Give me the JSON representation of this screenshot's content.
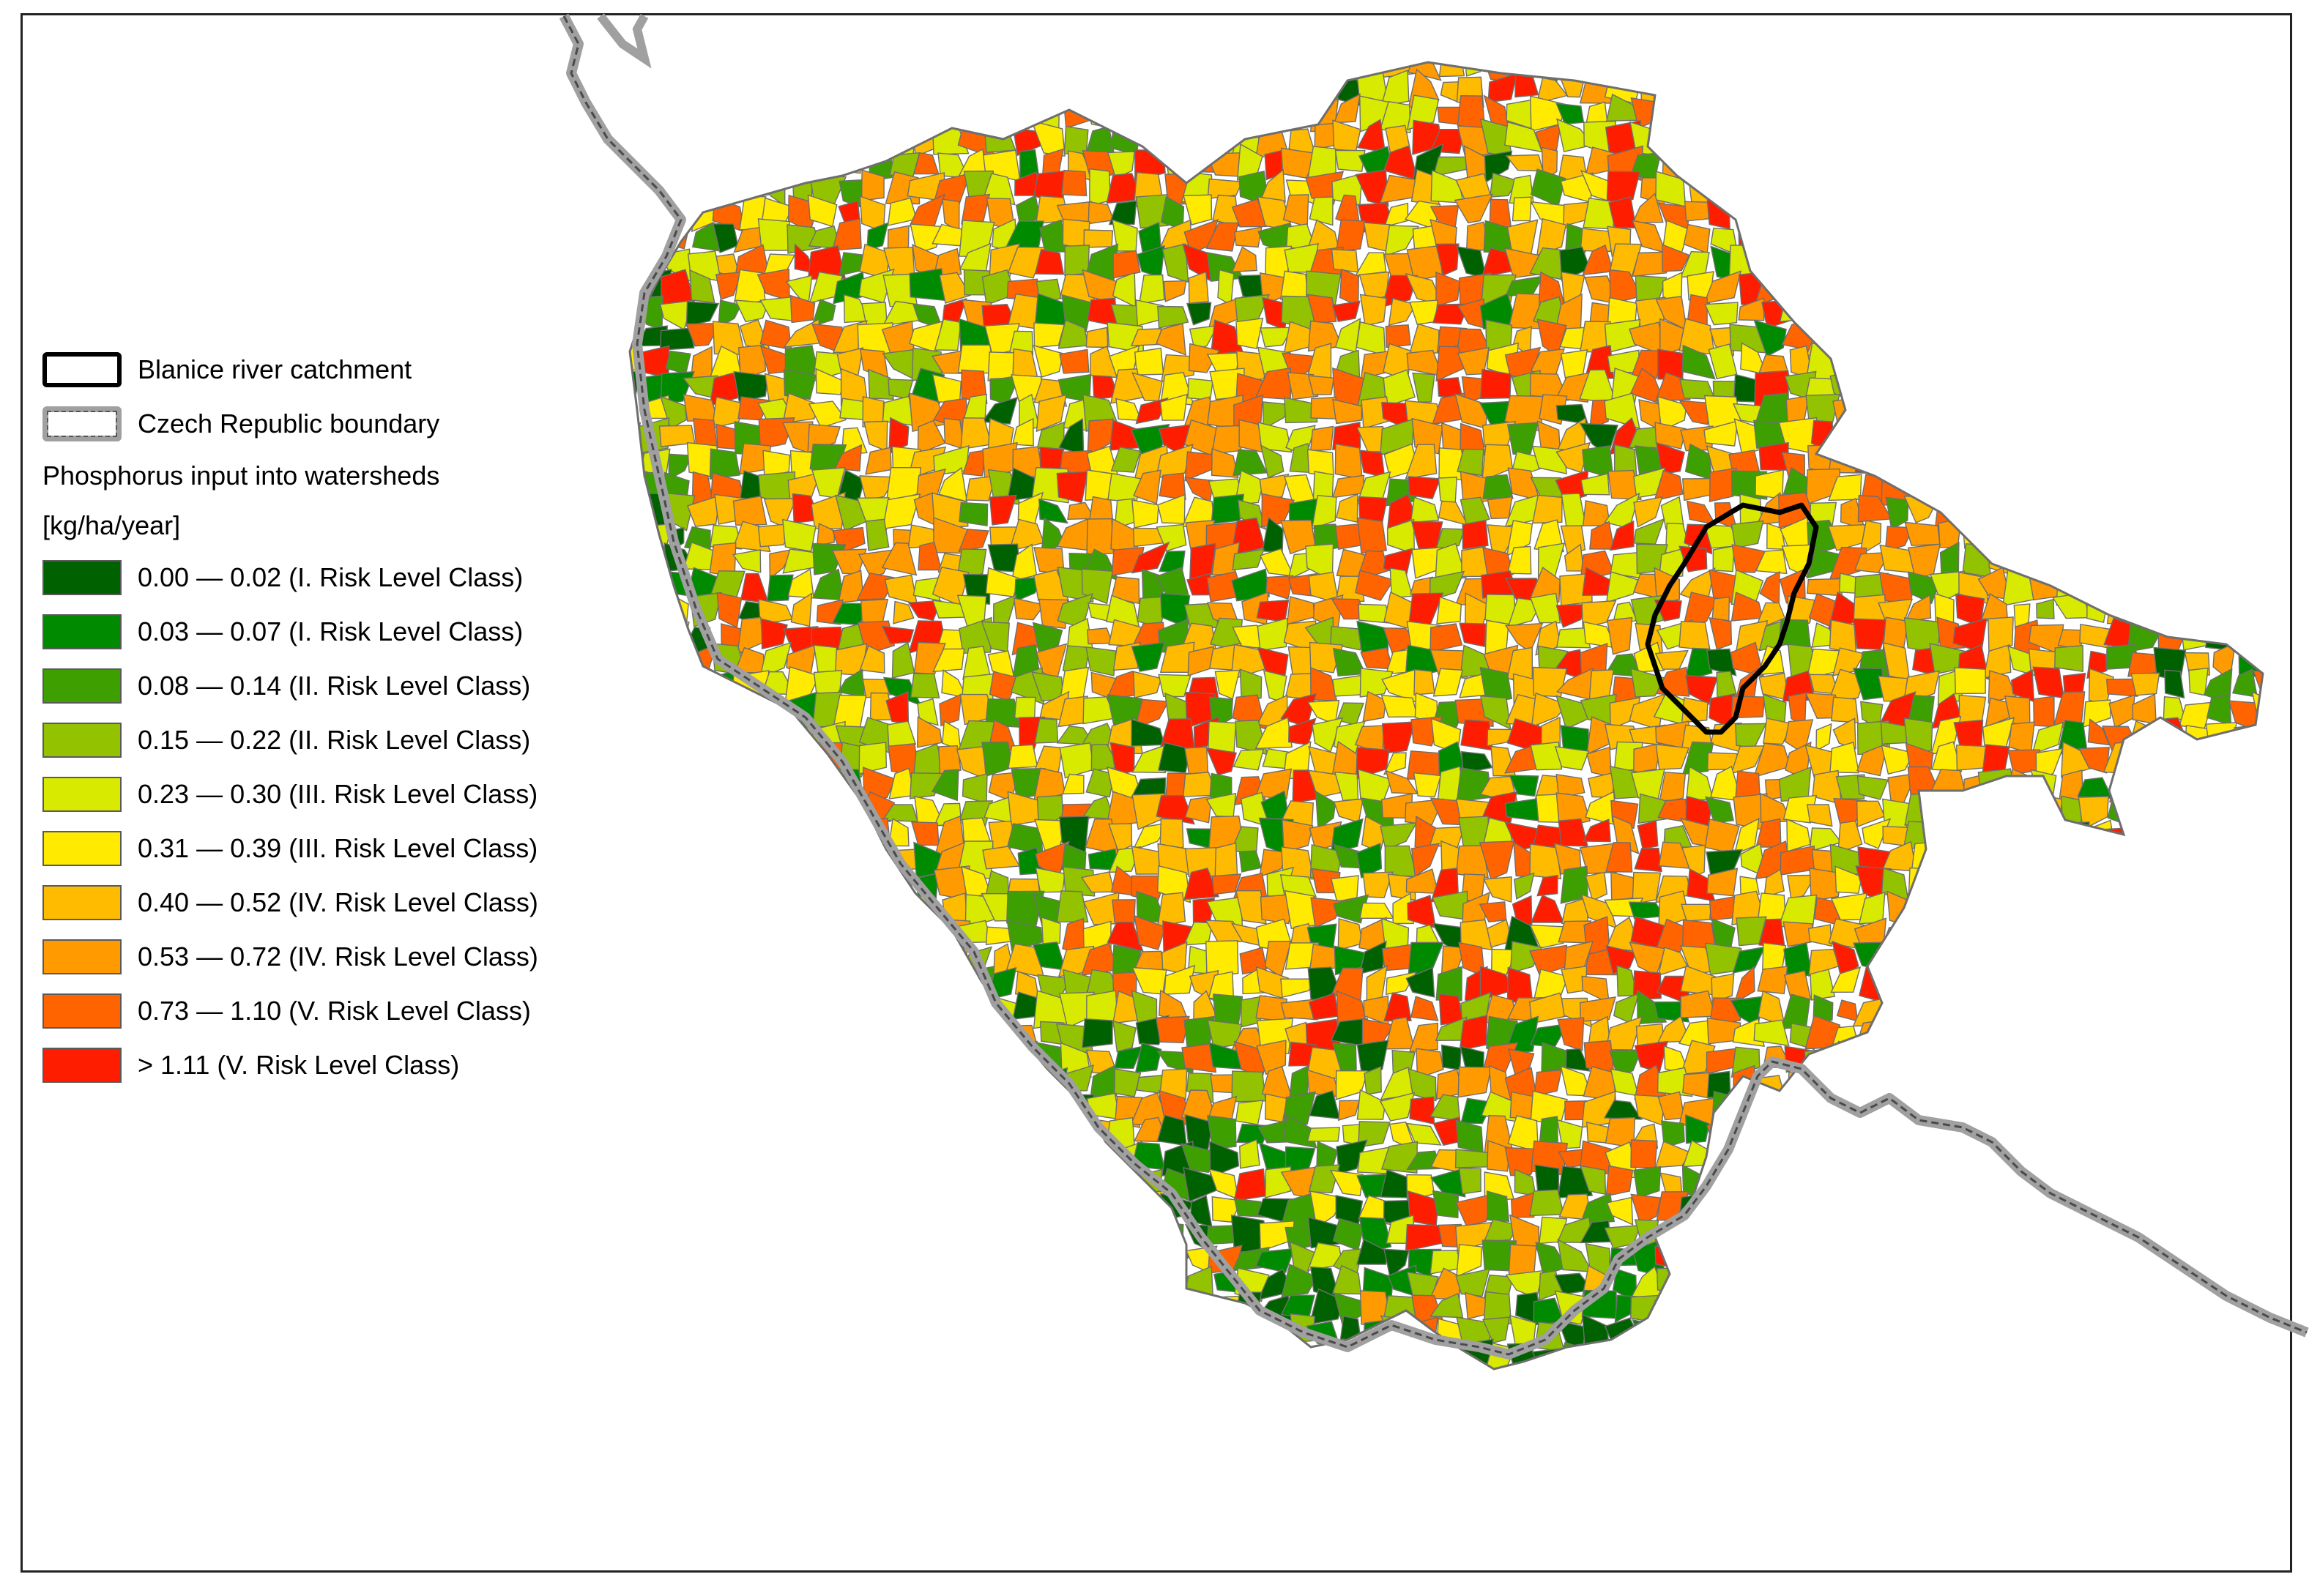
{
  "legend": {
    "boundary_items": [
      {
        "key": "catchment",
        "label": "Blanice river catchment"
      },
      {
        "key": "country",
        "label": "Czech Republic boundary"
      }
    ],
    "heading": "Phosphorus input into watersheds",
    "unit": "[kg/ha/year]",
    "classes": [
      {
        "label": "0.00 — 0.02 (I. Risk Level Class)",
        "color": "#006100"
      },
      {
        "label": "0.03 — 0.07 (I. Risk Level Class)",
        "color": "#008a00"
      },
      {
        "label": "0.08 — 0.14 (II. Risk Level Class)",
        "color": "#3da000"
      },
      {
        "label": "0.15 — 0.22 (II. Risk Level Class)",
        "color": "#93c200"
      },
      {
        "label": "0.23 — 0.30 (III. Risk Level Class)",
        "color": "#d8ea00"
      },
      {
        "label": "0.31 — 0.39 (III. Risk Level Class)",
        "color": "#ffea00"
      },
      {
        "label": "0.40 — 0.52 (IV. Risk Level Class)",
        "color": "#ffbb00"
      },
      {
        "label": "0.53 — 0.72 (IV. Risk Level Class)",
        "color": "#ff9a00"
      },
      {
        "label": "0.73 — 1.10 (V. Risk Level Class)",
        "color": "#ff6400"
      },
      {
        "label": "> 1.11 (V. Risk Level Class)",
        "color": "#ff1d00"
      }
    ]
  },
  "map": {
    "outline_color": "#6e6e6e",
    "country_boundary_color": "#a0a0a0",
    "catchment_outline_color": "#000000"
  }
}
